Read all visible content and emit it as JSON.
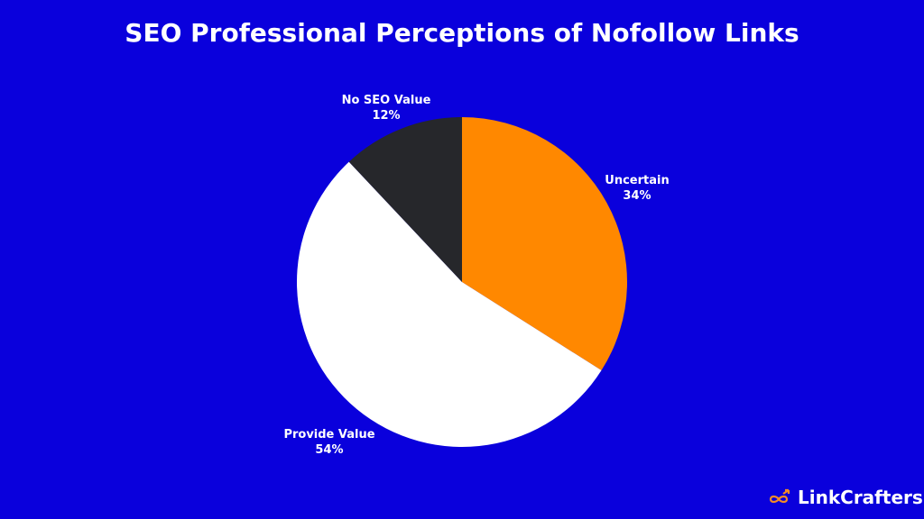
{
  "chart_data": {
    "type": "pie",
    "title": "SEO Professional Perceptions of Nofollow Links",
    "slices": [
      {
        "label": "Uncertain",
        "value": 34,
        "display": "34%",
        "color": "#ff8800"
      },
      {
        "label": "Provide Value",
        "value": 54,
        "display": "54%",
        "color": "#ffffff"
      },
      {
        "label": "No SEO Value",
        "value": 12,
        "display": "12%",
        "color": "#26272b"
      }
    ],
    "start": "top",
    "direction": "clockwise"
  },
  "brand": {
    "name": "LinkCrafters",
    "accent": "#f28c28"
  },
  "background": "#0a00dc"
}
